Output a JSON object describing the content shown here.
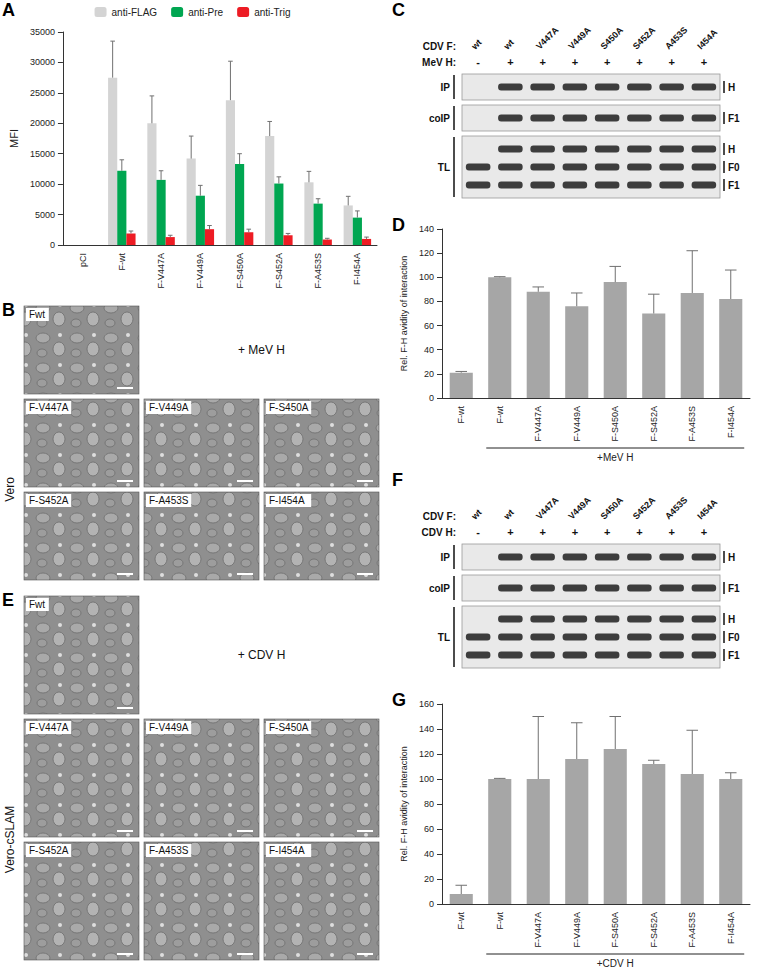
{
  "chart_data": [
    {
      "panel": "A",
      "type": "bar",
      "categories": [
        "pCI",
        "F-wt",
        "F-V447A",
        "F-V449A",
        "F-S450A",
        "F-S452A",
        "F-A453S",
        "F-I454A"
      ],
      "ylabel": "MFI",
      "ylim": [
        0,
        35000
      ],
      "yticks": [
        0,
        5000,
        10000,
        15000,
        20000,
        25000,
        30000,
        35000
      ],
      "grid": false,
      "legend": "top",
      "series": [
        {
          "name": "anti-FLAG",
          "color": "#d4d4d4",
          "values": [
            0,
            27500,
            20000,
            14200,
            23800,
            17900,
            10300,
            6500
          ],
          "errors": [
            0,
            6000,
            4500,
            3700,
            6400,
            2400,
            1800,
            1500
          ]
        },
        {
          "name": "anti-Pre",
          "color": "#00a651",
          "values": [
            0,
            12200,
            10700,
            8100,
            13300,
            10100,
            6800,
            4500
          ],
          "errors": [
            0,
            1800,
            1500,
            1700,
            1700,
            1100,
            800,
            1100
          ]
        },
        {
          "name": "anti-Trig",
          "color": "#ed1c24",
          "values": [
            0,
            1900,
            1300,
            2600,
            2100,
            1600,
            900,
            1000
          ],
          "errors": [
            0,
            400,
            300,
            600,
            500,
            300,
            200,
            300
          ]
        }
      ]
    },
    {
      "panel": "D",
      "type": "bar",
      "categories": [
        "F-wt",
        "F-wt",
        "F-V447A",
        "F-V449A",
        "F-S450A",
        "F-S452A",
        "F-A453S",
        "F-I454A"
      ],
      "group_label": "+MeV H",
      "ylabel": "Rel. F-H avidity of interaction",
      "ylim": [
        0,
        140
      ],
      "yticks": [
        0,
        20,
        40,
        60,
        80,
        100,
        120,
        140
      ],
      "grid": false,
      "color": "#a6a6a6",
      "values": [
        21,
        100,
        88,
        76,
        96,
        70,
        87,
        82
      ],
      "errors": [
        1,
        0.5,
        4,
        11,
        13,
        16,
        35,
        24
      ]
    },
    {
      "panel": "G",
      "type": "bar",
      "categories": [
        "F-wt",
        "F-wt",
        "F-V447A",
        "F-V449A",
        "F-S450A",
        "F-S452A",
        "F-A453S",
        "F-I454A"
      ],
      "group_label": "+CDV H",
      "ylabel": "Rel. F-H avidity of interaction",
      "ylim": [
        0,
        160
      ],
      "yticks": [
        0,
        20,
        40,
        60,
        80,
        100,
        120,
        140,
        160
      ],
      "grid": false,
      "color": "#a6a6a6",
      "values": [
        8,
        100,
        100,
        116,
        124,
        112,
        104,
        100
      ],
      "errors": [
        7,
        0.5,
        50,
        29,
        26,
        3,
        35,
        5
      ]
    }
  ],
  "images": [
    {
      "panel": "B",
      "condition": "+ MeV H",
      "cell_line": "Vero",
      "labels": [
        "Fwt",
        "F-V447A",
        "F-V449A",
        "F-S450A",
        "F-S452A",
        "F-A453S",
        "F-I454A"
      ]
    },
    {
      "panel": "E",
      "condition": "+ CDV H",
      "cell_line": "Vero-cSLAM",
      "labels": [
        "Fwt",
        "F-V447A",
        "F-V449A",
        "F-S450A",
        "F-S452A",
        "F-A453S",
        "F-I454A"
      ]
    }
  ],
  "blots": [
    {
      "panel": "C",
      "rows": [
        {
          "label": "CDV F:",
          "lanes": [
            "wt",
            "wt",
            "V447A",
            "V449A",
            "S450A",
            "S452A",
            "A453S",
            "I454A"
          ]
        },
        {
          "label": "MeV H:",
          "lanes": [
            "-",
            "+",
            "+",
            "+",
            "+",
            "+",
            "+",
            "+"
          ]
        }
      ],
      "blocks": [
        {
          "label": "IP",
          "bands": [
            "H"
          ]
        },
        {
          "label": "coIP",
          "bands": [
            "F1"
          ]
        },
        {
          "label": "TL",
          "bands": [
            "H",
            "F0",
            "F1"
          ]
        }
      ]
    },
    {
      "panel": "F",
      "rows": [
        {
          "label": "CDV F:",
          "lanes": [
            "wt",
            "wt",
            "V447A",
            "V449A",
            "S450A",
            "S452A",
            "A453S",
            "I454A"
          ]
        },
        {
          "label": "CDV H:",
          "lanes": [
            "-",
            "+",
            "+",
            "+",
            "+",
            "+",
            "+",
            "+"
          ]
        }
      ],
      "blocks": [
        {
          "label": "IP",
          "bands": [
            "H"
          ]
        },
        {
          "label": "coIP",
          "bands": [
            "F1"
          ]
        },
        {
          "label": "TL",
          "bands": [
            "H",
            "F0",
            "F1"
          ]
        }
      ]
    }
  ]
}
